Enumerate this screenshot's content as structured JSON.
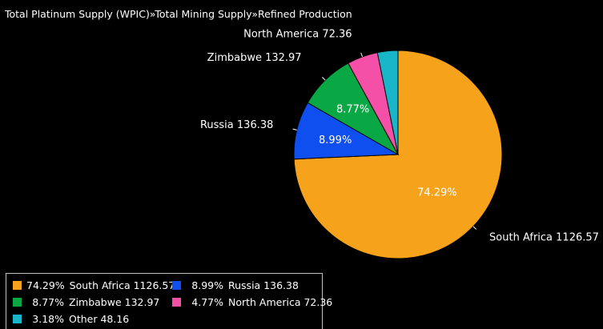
{
  "title": "Total Platinum Supply (WPIC)»Total Mining Supply»Refined Production",
  "chart_data": {
    "type": "pie",
    "title": "Total Platinum Supply (WPIC)»Total Mining Supply»Refined Production",
    "slices": [
      {
        "name": "South Africa",
        "value": 1126.57,
        "percent": "74.29%",
        "color": "#f7a21b"
      },
      {
        "name": "Russia",
        "value": 136.38,
        "percent": "8.99%",
        "color": "#0f4ff0"
      },
      {
        "name": "Zimbabwe",
        "value": 132.97,
        "percent": "8.77%",
        "color": "#0aa845"
      },
      {
        "name": "North America",
        "value": 72.36,
        "percent": "4.77%",
        "color": "#f550a7"
      },
      {
        "name": "Other",
        "value": 48.16,
        "percent": "3.18%",
        "color": "#19b6c9"
      }
    ],
    "slice_labels": [
      "74.29%",
      "8.99%",
      "8.77%",
      "",
      ""
    ],
    "callouts": [
      "South Africa 1126.57",
      "Russia 136.38",
      "Zimbabwe 132.97",
      "North America 72.36",
      ""
    ],
    "legend": {
      "placement": "bottom-left",
      "entries": [
        {
          "percent": "74.29%",
          "label": "South Africa 1126.57",
          "color": "#f7a21b"
        },
        {
          "percent": "8.99%",
          "label": "Russia 136.38",
          "color": "#0f4ff0"
        },
        {
          "percent": "8.77%",
          "label": "Zimbabwe 132.97",
          "color": "#0aa845"
        },
        {
          "percent": "4.77%",
          "label": "North America 72.36",
          "color": "#f550a7"
        },
        {
          "percent": "3.18%",
          "label": "Other 48.16",
          "color": "#19b6c9"
        }
      ]
    }
  }
}
